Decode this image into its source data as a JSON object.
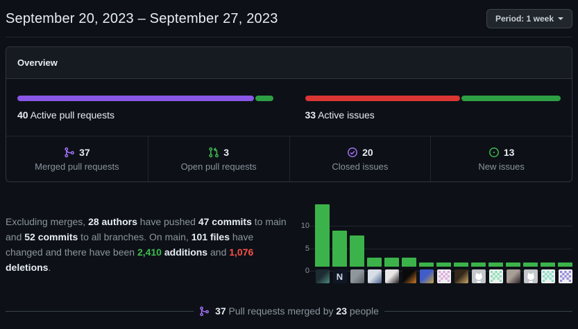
{
  "colors": {
    "background": "#0d1117",
    "panel_header_bg": "#161b22",
    "border": "#30363d",
    "muted_text": "#8b949e",
    "strong_text": "#e6edf3",
    "purple_bar": "#8957e5",
    "purple_icon": "#a371f7",
    "green_bar": "#2ea043",
    "green_icon": "#3fb950",
    "red_bar": "#da3633",
    "chart_bar": "#3cb34a"
  },
  "header": {
    "title": "September 20, 2023 – September 27, 2023",
    "period_button": {
      "label": "Period: 1 week"
    }
  },
  "overview": {
    "title": "Overview",
    "active_pull_requests": {
      "count": "40",
      "label": "Active pull requests",
      "first_segment_pct": 92.5,
      "segment_colors": [
        "#8957e5",
        "#2ea043"
      ]
    },
    "active_issues": {
      "count": "33",
      "label": "Active issues",
      "first_segment_pct": 60.6,
      "segment_colors": [
        "#da3633",
        "#2ea043"
      ]
    },
    "stats": [
      {
        "value": "37",
        "label": "Merged pull requests",
        "icon": "git-merge-icon",
        "icon_color": "#a371f7"
      },
      {
        "value": "3",
        "label": "Open pull requests",
        "icon": "git-pull-request-icon",
        "icon_color": "#3fb950"
      },
      {
        "value": "20",
        "label": "Closed issues",
        "icon": "issue-closed-icon",
        "icon_color": "#a371f7"
      },
      {
        "value": "13",
        "label": "New issues",
        "icon": "issue-opened-icon",
        "icon_color": "#3fb950"
      }
    ]
  },
  "summary": {
    "parts": [
      {
        "text": "Excluding merges, ",
        "style": "muted"
      },
      {
        "text": "28 authors",
        "style": "strong"
      },
      {
        "text": " have pushed ",
        "style": "muted"
      },
      {
        "text": "47 commits",
        "style": "strong"
      },
      {
        "text": " to main and ",
        "style": "muted"
      },
      {
        "text": "52 commits",
        "style": "strong"
      },
      {
        "text": " to all branches. On main, ",
        "style": "muted"
      },
      {
        "text": "101 files",
        "style": "strong"
      },
      {
        "text": " have changed and there have been ",
        "style": "muted"
      },
      {
        "text": "2,410",
        "style": "green"
      },
      {
        "text": " additions",
        "style": "strong"
      },
      {
        "text": " and ",
        "style": "muted"
      },
      {
        "text": "1,076",
        "style": "red"
      },
      {
        "text": " deletions",
        "style": "strong"
      },
      {
        "text": ".",
        "style": "muted"
      }
    ]
  },
  "chart_data": {
    "type": "bar",
    "values": [
      14,
      8,
      7,
      2,
      2,
      2,
      1,
      1,
      1,
      1,
      1,
      1,
      1,
      1,
      1
    ],
    "yticks": [
      0,
      5,
      10
    ],
    "ylim": [
      0,
      15
    ],
    "grid": true,
    "bar_color": "#3cb34a",
    "x_axis": "author avatars",
    "avatars": [
      {
        "kind": "photo",
        "colors": [
          "#1d2b33",
          "#4e8a7d"
        ]
      },
      {
        "kind": "letter",
        "bg": "#101724",
        "fg": "#cdd6e4",
        "letter": "N"
      },
      {
        "kind": "photo",
        "colors": [
          "#8f979c",
          "#565b5f"
        ]
      },
      {
        "kind": "photo",
        "colors": [
          "#d8dee6",
          "#4a6390"
        ]
      },
      {
        "kind": "photo",
        "colors": [
          "#e8e6e7",
          "#221a1e"
        ]
      },
      {
        "kind": "photo",
        "colors": [
          "#0a0a0b",
          "#cf7a24"
        ]
      },
      {
        "kind": "photo",
        "colors": [
          "#3f5cc8",
          "#c8a43c"
        ]
      },
      {
        "kind": "identicon",
        "bg": "#f0f0f0",
        "fg": "#dcaade"
      },
      {
        "kind": "photo",
        "colors": [
          "#33281a",
          "#cfa96a"
        ]
      },
      {
        "kind": "octocat",
        "bg": "#c3c6cb",
        "fg": "#ffffff"
      },
      {
        "kind": "identicon",
        "bg": "#f0f0f0",
        "fg": "#89dfb5"
      },
      {
        "kind": "photo",
        "colors": [
          "#a89f97",
          "#2b2125"
        ]
      },
      {
        "kind": "octocat",
        "bg": "#c3c6cb",
        "fg": "#ffffff"
      },
      {
        "kind": "identicon",
        "bg": "#f0f0f0",
        "fg": "#84e0c1"
      },
      {
        "kind": "identicon",
        "bg": "#f0f0f0",
        "fg": "#9188dd"
      }
    ]
  },
  "merged_by": {
    "icon": "git-merge-icon",
    "icon_color": "#a371f7",
    "parts": [
      {
        "text": "37",
        "style": "strong"
      },
      {
        "text": " Pull requests merged by ",
        "style": "muted"
      },
      {
        "text": "23",
        "style": "strong"
      },
      {
        "text": " people",
        "style": "muted"
      }
    ]
  }
}
